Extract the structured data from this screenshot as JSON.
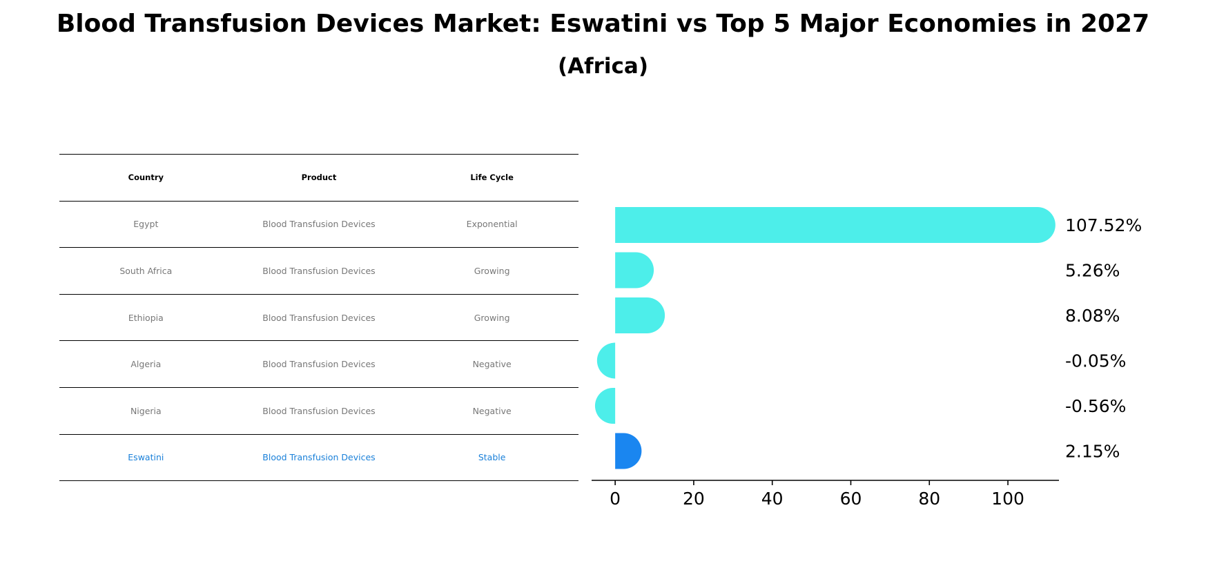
{
  "title": {
    "line1": "Blood Transfusion Devices Market: Eswatini vs Top 5 Major Economies in 2027",
    "line2": "(Africa)"
  },
  "table": {
    "headers": [
      "Country",
      "Product",
      "Life Cycle"
    ],
    "rows": [
      {
        "country": "Egypt",
        "product": "Blood Transfusion Devices",
        "life_cycle": "Exponential"
      },
      {
        "country": "South Africa",
        "product": "Blood Transfusion Devices",
        "life_cycle": "Growing"
      },
      {
        "country": "Ethiopia",
        "product": "Blood Transfusion Devices",
        "life_cycle": "Growing"
      },
      {
        "country": "Algeria",
        "product": "Blood Transfusion Devices",
        "life_cycle": "Negative"
      },
      {
        "country": "Nigeria",
        "product": "Blood Transfusion Devices",
        "life_cycle": "Negative"
      },
      {
        "country": "Eswatini",
        "product": "Blood Transfusion Devices",
        "life_cycle": "Stable"
      }
    ]
  },
  "colors": {
    "bar_default": "#4deeea",
    "bar_highlight": "#1a86f0",
    "table_text": "#777777",
    "table_highlight_text": "#1a80d9"
  },
  "chart_data": {
    "type": "bar",
    "orientation": "horizontal",
    "categories": [
      "Egypt",
      "South Africa",
      "Ethiopia",
      "Algeria",
      "Nigeria",
      "Eswatini"
    ],
    "values": [
      107.52,
      5.26,
      8.08,
      -0.05,
      -0.56,
      2.15
    ],
    "value_labels": [
      "107.52%",
      "5.26%",
      "8.08%",
      "-0.05%",
      "-0.56%",
      "2.15%"
    ],
    "highlight": "Eswatini",
    "xlim": [
      -6,
      113
    ],
    "xticks": [
      0,
      20,
      40,
      60,
      80,
      100
    ],
    "xtick_labels": [
      "0",
      "20",
      "40",
      "60",
      "80",
      "100"
    ],
    "title": "Blood Transfusion Devices Market: Eswatini vs Top 5 Major Economies in 2027 (Africa)",
    "xlabel": "",
    "ylabel": ""
  }
}
